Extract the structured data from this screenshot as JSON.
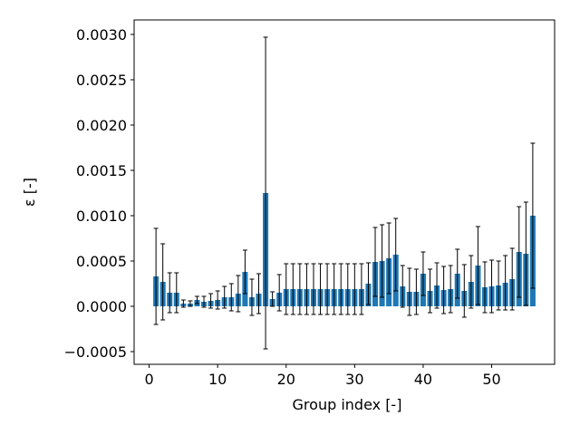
{
  "chart_data": {
    "type": "bar",
    "xlabel": "Group index [-]",
    "ylabel": "ε [-]",
    "color": "#1f77b4",
    "error_color": "#000000",
    "x": [
      1,
      2,
      3,
      4,
      5,
      6,
      7,
      8,
      9,
      10,
      11,
      12,
      13,
      14,
      15,
      16,
      17,
      18,
      19,
      20,
      21,
      22,
      23,
      24,
      25,
      26,
      27,
      28,
      29,
      30,
      31,
      32,
      33,
      34,
      35,
      36,
      37,
      38,
      39,
      40,
      41,
      42,
      43,
      44,
      45,
      46,
      47,
      48,
      49,
      50,
      51,
      52,
      53,
      54,
      55,
      56
    ],
    "values": [
      0.00033,
      0.00027,
      0.00015,
      0.00015,
      3e-05,
      3e-05,
      7e-05,
      5e-05,
      6e-05,
      7e-05,
      0.0001,
      0.0001,
      0.00014,
      0.00038,
      0.0001,
      0.00014,
      0.00125,
      8e-05,
      0.00015,
      0.00019,
      0.00019,
      0.00019,
      0.00019,
      0.00019,
      0.00019,
      0.00019,
      0.00019,
      0.00019,
      0.00019,
      0.00019,
      0.00019,
      0.00025,
      0.00049,
      0.0005,
      0.00053,
      0.00057,
      0.00022,
      0.00016,
      0.00016,
      0.00036,
      0.00017,
      0.00023,
      0.00018,
      0.00019,
      0.00036,
      0.00017,
      0.00027,
      0.00045,
      0.00021,
      0.00022,
      0.00023,
      0.00026,
      0.0003,
      0.0006,
      0.00058,
      0.001
    ],
    "errors": [
      0.00053,
      0.00042,
      0.00022,
      0.00022,
      4e-05,
      3e-05,
      4e-05,
      6e-05,
      8e-05,
      0.0001,
      0.00012,
      0.00015,
      0.0002,
      0.00024,
      0.0002,
      0.00022,
      0.00172,
      8e-05,
      0.0002,
      0.00028,
      0.00028,
      0.00028,
      0.00028,
      0.00028,
      0.00028,
      0.00028,
      0.00028,
      0.00028,
      0.00028,
      0.00028,
      0.00028,
      0.00023,
      0.00038,
      0.0004,
      0.00039,
      0.0004,
      0.00023,
      0.00026,
      0.00025,
      0.00024,
      0.00024,
      0.00025,
      0.00026,
      0.00026,
      0.00027,
      0.00029,
      0.00029,
      0.00043,
      0.00028,
      0.00029,
      0.00027,
      0.0003,
      0.00034,
      0.0005,
      0.00057,
      0.0008
    ],
    "xlim": [
      -2.19,
      59.19
    ],
    "xticks": [
      0,
      10,
      20,
      30,
      40,
      50
    ],
    "ylim": [
      -0.00064,
      0.00316
    ],
    "yticks": [
      {
        "value": -0.0005,
        "label": "−0.0005"
      },
      {
        "value": 0,
        "label": "0.0000"
      },
      {
        "value": 0.0005,
        "label": "0.0005"
      },
      {
        "value": 0.001,
        "label": "0.0010"
      },
      {
        "value": 0.0015,
        "label": "0.0015"
      },
      {
        "value": 0.002,
        "label": "0.0020"
      },
      {
        "value": 0.0025,
        "label": "0.0025"
      },
      {
        "value": 0.003,
        "label": "0.0030"
      }
    ],
    "bar_width": 0.8
  }
}
